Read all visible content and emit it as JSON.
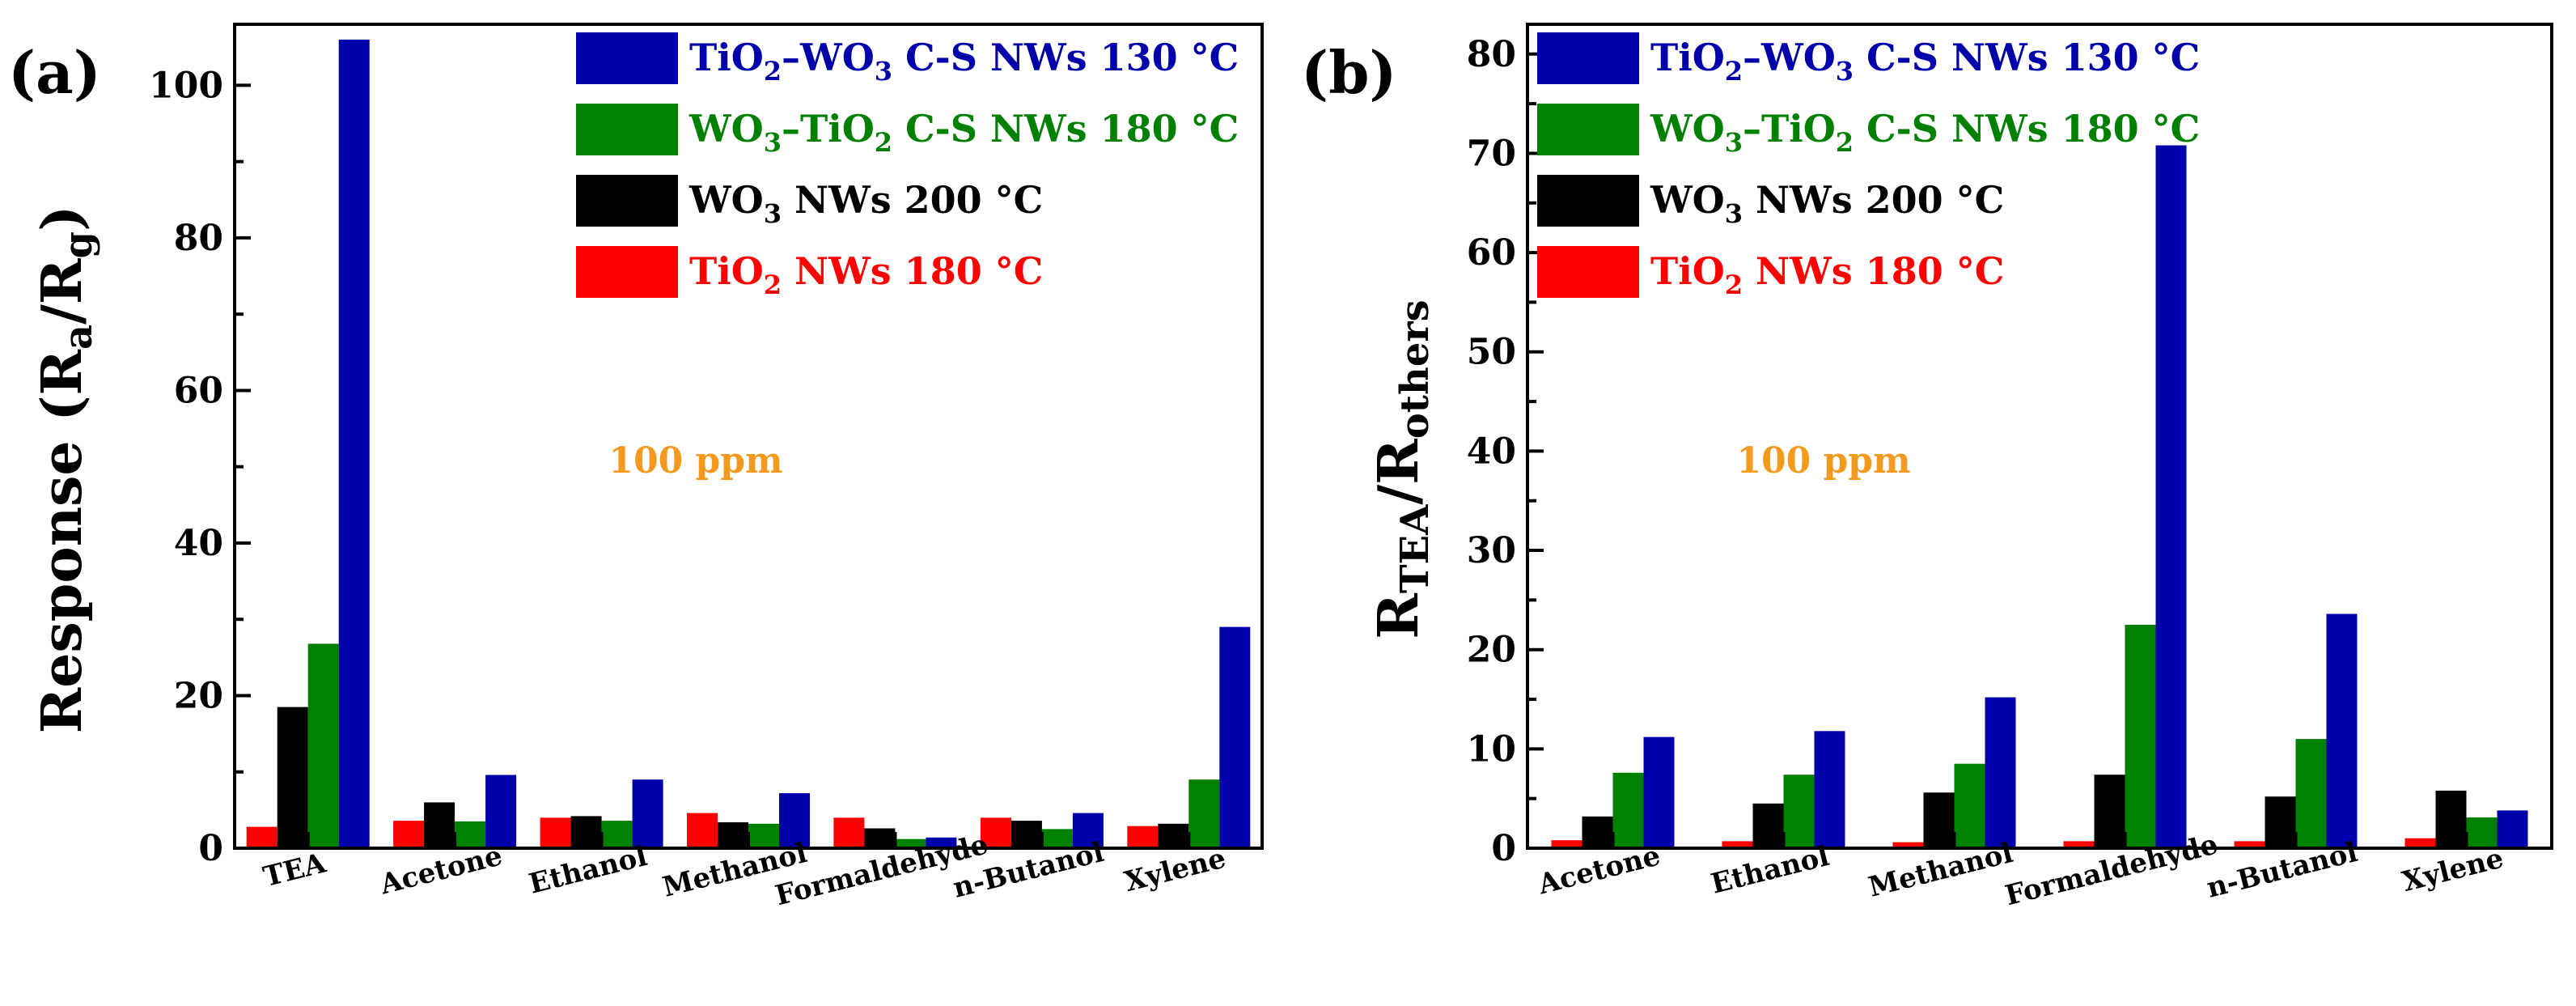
{
  "panels": [
    {
      "label": "(a)",
      "annotation": "100 ppm",
      "ylabel": {
        "main": "Response (R",
        "sub1": "a",
        "mid": "/R",
        "sub2": "g",
        "end": ")"
      }
    },
    {
      "label": "(b)",
      "annotation": "100 ppm",
      "ylabel": {
        "main": "R",
        "sub1": "TEA",
        "mid": "/R",
        "sub2": "others",
        "end": ""
      }
    }
  ],
  "legend": [
    {
      "parts": [
        [
          "TiO",
          ""
        ],
        [
          "2",
          "sub"
        ],
        [
          "–WO",
          ""
        ],
        [
          "3",
          "sub"
        ],
        [
          " C-S NWs 130 °C",
          ""
        ]
      ],
      "color": "#0000aa"
    },
    {
      "parts": [
        [
          "WO",
          ""
        ],
        [
          "3",
          "sub"
        ],
        [
          "–TiO",
          ""
        ],
        [
          "2",
          "sub"
        ],
        [
          " C-S NWs 180 °C",
          ""
        ]
      ],
      "color": "#008000"
    },
    {
      "parts": [
        [
          "WO",
          ""
        ],
        [
          "3",
          "sub"
        ],
        [
          " NWs 200 °C",
          ""
        ]
      ],
      "color": "#000000"
    },
    {
      "parts": [
        [
          "TiO",
          ""
        ],
        [
          "2",
          "sub"
        ],
        [
          " NWs 180 °C",
          ""
        ]
      ],
      "color": "#ff0000"
    }
  ],
  "chart_data": [
    {
      "type": "bar",
      "title": "(a)",
      "xlabel": "",
      "ylabel": "Response (Ra/Rg)",
      "ylim": [
        0,
        108
      ],
      "yticks": [
        0,
        20,
        40,
        60,
        80,
        100
      ],
      "categories": [
        "TEA",
        "Acetone",
        "Ethanol",
        "Methanol",
        "Formaldehyde",
        "n-Butanol",
        "Xylene"
      ],
      "series": [
        {
          "name": "TiO2 NWs 180 °C",
          "color": "#ff0000",
          "values": [
            2.8,
            3.6,
            4.0,
            4.6,
            4.0,
            4.0,
            2.9
          ]
        },
        {
          "name": "WO3 NWs 200 °C",
          "color": "#000000",
          "values": [
            18.5,
            6.0,
            4.2,
            3.4,
            2.6,
            3.6,
            3.2
          ]
        },
        {
          "name": "WO3–TiO2 C-S NWs 180 °C",
          "color": "#008000",
          "values": [
            26.8,
            3.5,
            3.6,
            3.2,
            1.2,
            2.5,
            9.0
          ]
        },
        {
          "name": "TiO2–WO3 C-S NWs 130 °C",
          "color": "#0000aa",
          "values": [
            106.0,
            9.6,
            9.0,
            7.2,
            1.4,
            4.6,
            29.0
          ]
        }
      ],
      "annotation": "100 ppm"
    },
    {
      "type": "bar",
      "title": "(b)",
      "xlabel": "",
      "ylabel": "RTEA/Rothers",
      "ylim": [
        0,
        83
      ],
      "yticks": [
        0,
        10,
        20,
        30,
        40,
        50,
        60,
        70,
        80
      ],
      "categories": [
        "Acetone",
        "Ethanol",
        "Methanol",
        "Formaldehyde",
        "n-Butanol",
        "Xylene"
      ],
      "series": [
        {
          "name": "TiO2 NWs 180 °C",
          "color": "#ff0000",
          "values": [
            0.8,
            0.7,
            0.6,
            0.7,
            0.7,
            1.0
          ]
        },
        {
          "name": "WO3 NWs 200 °C",
          "color": "#000000",
          "values": [
            3.2,
            4.5,
            5.6,
            7.4,
            5.2,
            5.8
          ]
        },
        {
          "name": "WO3–TiO2 C-S NWs 180 °C",
          "color": "#008000",
          "values": [
            7.6,
            7.4,
            8.5,
            22.5,
            11.0,
            3.1
          ]
        },
        {
          "name": "TiO2–WO3 C-S NWs 130 °C",
          "color": "#0000aa",
          "values": [
            11.2,
            11.8,
            15.2,
            70.8,
            23.6,
            3.8
          ]
        }
      ],
      "annotation": "100 ppm"
    }
  ]
}
